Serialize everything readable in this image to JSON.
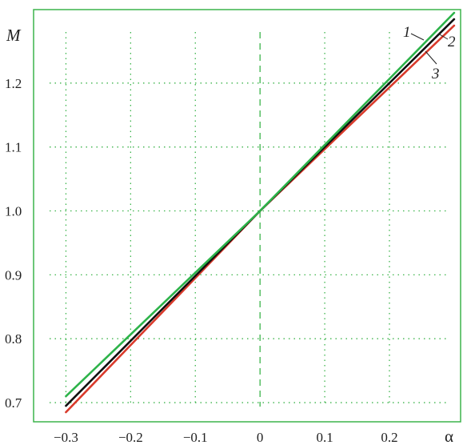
{
  "chart_data": {
    "type": "line",
    "title": "",
    "xlabel": "α",
    "ylabel": "M",
    "xlim": [
      -0.35,
      0.31
    ],
    "ylim": [
      0.67,
      1.315
    ],
    "grid": true,
    "x_ticks": [
      -0.3,
      -0.2,
      -0.1,
      0.0,
      0.1,
      0.2
    ],
    "x_tick_labels": [
      "−0.3",
      "−0.2",
      "−0.1",
      "0",
      "0.1",
      "0.2"
    ],
    "y_ticks": [
      0.7,
      0.8,
      0.9,
      1.0,
      1.1,
      1.2
    ],
    "y_tick_labels": [
      "0.7",
      "0.8",
      "0.9",
      "1.0",
      "1.1",
      "1.2"
    ],
    "colors": {
      "frame": "#3cb44b",
      "grid": "#3cb44b",
      "zero_line": "#3cb44b",
      "axis_text": "#222222"
    },
    "series": [
      {
        "name": "1",
        "color": "#2db34a",
        "x": [
          -0.3,
          0.0,
          0.3
        ],
        "y": [
          0.71,
          1.0,
          1.31
        ]
      },
      {
        "name": "2",
        "color": "#111111",
        "x": [
          -0.3,
          0.0,
          0.3
        ],
        "y": [
          0.695,
          1.0,
          1.3
        ]
      },
      {
        "name": "3",
        "color": "#d93a2b",
        "x": [
          -0.3,
          0.0,
          0.3
        ],
        "y": [
          0.685,
          1.0,
          1.29
        ]
      }
    ]
  }
}
